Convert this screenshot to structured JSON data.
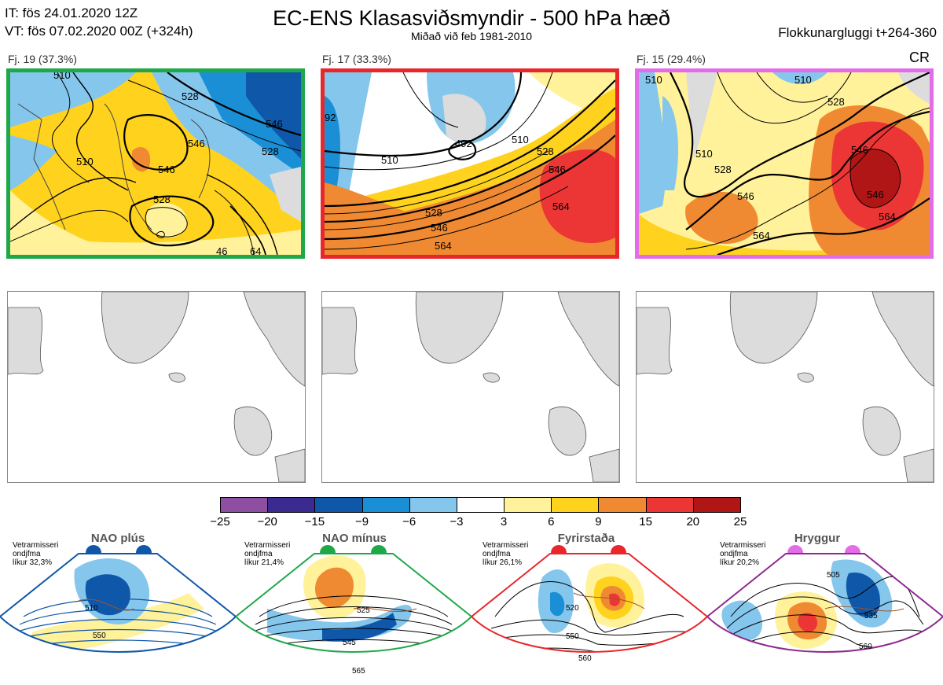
{
  "header": {
    "it_line": "IT: fös 24.01.2020 12Z",
    "vt_line": "VT: fös 07.02.2020 00Z  (+324h)",
    "title": "EC-ENS Klasasviðsmyndir - 500 hPa hæð",
    "subtitle": "Miðað við feb 1981-2010",
    "window": "Flokkunargluggi t+264-360",
    "corner": "CR"
  },
  "clusters": [
    {
      "label": "Fj. 19 (37.3%)",
      "border_color": "#1fa84a",
      "contour_labels": [
        "510",
        "528",
        "546",
        "528",
        "546",
        "546",
        "528",
        "510",
        "46",
        "64"
      ]
    },
    {
      "label": "Fj. 17 (33.3%)",
      "border_color": "#e8262c",
      "contour_labels": [
        "92",
        "510",
        "492",
        "510",
        "528",
        "546",
        "564",
        "528",
        "546",
        "564"
      ]
    },
    {
      "label": "Fj. 15 (29.4%)",
      "border_color": "#e36de8",
      "contour_labels": [
        "510",
        "510",
        "528",
        "510",
        "528",
        "546",
        "546",
        "564",
        "546",
        "564"
      ]
    }
  ],
  "colorbar": {
    "ticks": [
      "−25",
      "−20",
      "−15",
      "−9",
      "−6",
      "−3",
      "3",
      "6",
      "9",
      "15",
      "20",
      "25"
    ],
    "colors": [
      "#8e4fa3",
      "#3b2a8f",
      "#0f57a8",
      "#1b8fd6",
      "#85c6ec",
      "#ffffff",
      "#fff29a",
      "#ffd21e",
      "#f08a32",
      "#ec3535",
      "#b01616"
    ]
  },
  "regimes": [
    {
      "name": "NAO plús",
      "info_line1": "Vetrarmisseri",
      "info_line2": "ondjfma",
      "info_line3": "líkur 32,3%",
      "dot_color": "#0f57a8",
      "frame_color": "#0f57a8",
      "contour_labels": [
        "510",
        "550"
      ]
    },
    {
      "name": "NAO mínus",
      "info_line1": "Vetrarmisseri",
      "info_line2": "ondjfma",
      "info_line3": "líkur 21,4%",
      "dot_color": "#1fa84a",
      "frame_color": "#1fa84a",
      "contour_labels": [
        "525",
        "545",
        "565"
      ]
    },
    {
      "name": "Fyrirstaða",
      "info_line1": "Vetrarmisseri",
      "info_line2": "ondjfma",
      "info_line3": "líkur 26,1%",
      "dot_color": "#e8262c",
      "frame_color": "#e8262c",
      "contour_labels": [
        "520",
        "550",
        "560"
      ]
    },
    {
      "name": "Hryggur",
      "info_line1": "Vetrarmisseri",
      "info_line2": "ondjfma",
      "info_line3": "líkur 20,2%",
      "dot_color": "#e36de8",
      "frame_color": "#8e2a8f",
      "contour_labels": [
        "505",
        "535",
        "560"
      ]
    }
  ]
}
